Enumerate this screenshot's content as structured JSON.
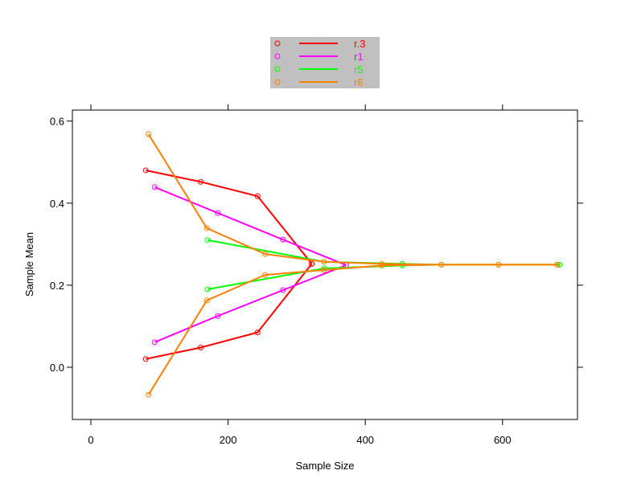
{
  "chart_data": {
    "type": "line",
    "title": "",
    "xlabel": "Sample Size",
    "ylabel": "Sample Mean",
    "xlim": [
      -25,
      710
    ],
    "ylim": [
      -0.13,
      0.625
    ],
    "xticks": [
      0,
      200,
      400,
      600
    ],
    "xtick_labels": [
      "0",
      "200",
      "400",
      "600"
    ],
    "yticks": [
      0.0,
      0.2,
      0.4,
      0.6
    ],
    "ytick_labels": [
      "0.0",
      "0.2",
      "0.4",
      "0.6"
    ],
    "grid": false,
    "legend_placement": "top-center",
    "series": [
      {
        "name": "r.3",
        "color": "#ff0000",
        "branches": [
          {
            "x": [
              80,
              160,
              243,
              322
            ],
            "y": [
              0.48,
              0.452,
              0.417,
              0.252
            ]
          },
          {
            "x": [
              80,
              160,
              243,
              322
            ],
            "y": [
              0.02,
              0.048,
              0.085,
              0.252
            ]
          }
        ]
      },
      {
        "name": "r1",
        "color": "#ff00ff",
        "branches": [
          {
            "x": [
              93,
              185,
              280,
              372
            ],
            "y": [
              0.439,
              0.376,
              0.311,
              0.249
            ]
          },
          {
            "x": [
              93,
              185,
              280,
              372
            ],
            "y": [
              0.061,
              0.125,
              0.188,
              0.249
            ]
          }
        ]
      },
      {
        "name": "r5",
        "color": "#00ff00",
        "branches": [
          {
            "x": [
              170,
              340,
              454,
              511,
              683
            ],
            "y": [
              0.31,
              0.257,
              0.252,
              0.25,
              0.25
            ]
          },
          {
            "x": [
              170,
              340,
              454,
              511,
              683
            ],
            "y": [
              0.19,
              0.241,
              0.248,
              0.25,
              0.25
            ]
          }
        ]
      },
      {
        "name": "r6",
        "color": "#ff8000",
        "branches": [
          {
            "x": [
              84,
              169,
              254,
              340,
              424,
              511,
              594,
              680
            ],
            "y": [
              0.568,
              0.339,
              0.276,
              0.257,
              0.252,
              0.25,
              0.25,
              0.25
            ]
          },
          {
            "x": [
              84,
              169,
              254,
              340,
              424,
              511,
              594,
              680
            ],
            "y": [
              -0.067,
              0.163,
              0.225,
              0.237,
              0.248,
              0.25,
              0.25,
              0.25
            ]
          }
        ]
      }
    ]
  }
}
